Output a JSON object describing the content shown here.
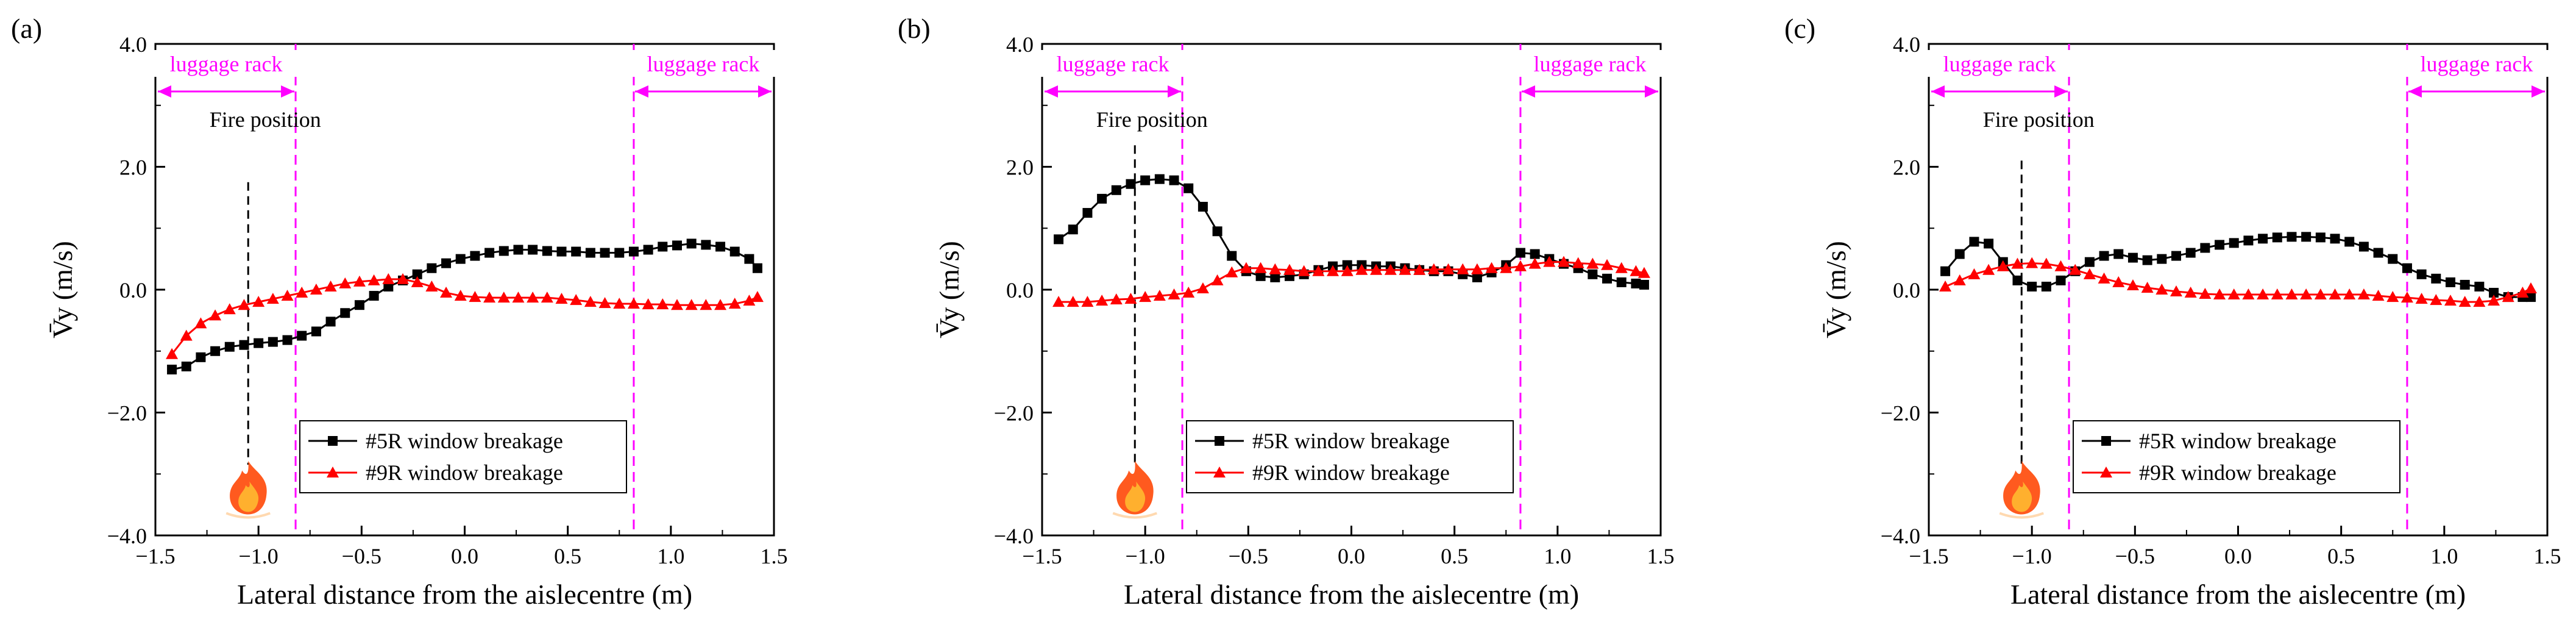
{
  "figure": {
    "panels": [
      {
        "label": "(a)"
      },
      {
        "label": "(b)"
      },
      {
        "label": "(c)"
      }
    ],
    "luggage_rack_label": "luggage rack",
    "fire_position_label": "Fire position",
    "fire_x": -1.05,
    "rack_boundaries": [
      -0.82,
      0.82
    ],
    "colors": {
      "series1": "#000000",
      "series2": "#ff0000",
      "rack": "#ff00ff",
      "fire_outer": "#ff5a1f",
      "fire_inner": "#ffb02e"
    },
    "icon": "fire-icon"
  },
  "chart_data": [
    {
      "type": "line",
      "title": "(a)",
      "xlabel": "Lateral distance from the aislecentre (m)",
      "ylabel": "V̄y (m/s)",
      "xlim": [
        -1.5,
        1.5
      ],
      "ylim": [
        -4.0,
        4.0
      ],
      "xticks": [
        -1.5,
        -1.0,
        -0.5,
        0.0,
        0.5,
        1.0,
        1.5
      ],
      "xtick_labels": [
        "−1.5",
        "−1.0",
        "−0.5",
        "0.0",
        "0.5",
        "1.0",
        "1.5"
      ],
      "yticks": [
        -4.0,
        -2.0,
        0.0,
        2.0,
        4.0
      ],
      "ytick_labels": [
        "−4.0",
        "−2.0",
        "0.0",
        "2.0",
        "4.0"
      ],
      "grid": false,
      "legend": "lower-center",
      "series": [
        {
          "name": "#5R window breakage",
          "marker": "square",
          "x": [
            -1.42,
            -1.35,
            -1.28,
            -1.21,
            -1.14,
            -1.07,
            -1.0,
            -0.93,
            -0.86,
            -0.79,
            -0.72,
            -0.65,
            -0.58,
            -0.51,
            -0.44,
            -0.37,
            -0.3,
            -0.23,
            -0.16,
            -0.09,
            -0.02,
            0.05,
            0.12,
            0.19,
            0.26,
            0.33,
            0.4,
            0.47,
            0.54,
            0.61,
            0.68,
            0.75,
            0.82,
            0.89,
            0.96,
            1.03,
            1.1,
            1.17,
            1.24,
            1.31,
            1.38,
            1.42
          ],
          "y": [
            -1.3,
            -1.25,
            -1.1,
            -1.0,
            -0.93,
            -0.9,
            -0.87,
            -0.85,
            -0.82,
            -0.75,
            -0.68,
            -0.52,
            -0.38,
            -0.25,
            -0.1,
            0.05,
            0.15,
            0.25,
            0.35,
            0.43,
            0.5,
            0.55,
            0.6,
            0.63,
            0.65,
            0.65,
            0.63,
            0.62,
            0.62,
            0.6,
            0.6,
            0.6,
            0.62,
            0.65,
            0.7,
            0.72,
            0.75,
            0.73,
            0.7,
            0.62,
            0.5,
            0.35
          ]
        },
        {
          "name": "#9R window breakage",
          "marker": "triangle",
          "x": [
            -1.42,
            -1.35,
            -1.28,
            -1.21,
            -1.14,
            -1.07,
            -1.0,
            -0.93,
            -0.86,
            -0.79,
            -0.72,
            -0.65,
            -0.58,
            -0.51,
            -0.44,
            -0.37,
            -0.3,
            -0.23,
            -0.16,
            -0.09,
            -0.02,
            0.05,
            0.12,
            0.19,
            0.26,
            0.33,
            0.4,
            0.47,
            0.54,
            0.61,
            0.68,
            0.75,
            0.82,
            0.89,
            0.96,
            1.03,
            1.1,
            1.17,
            1.24,
            1.31,
            1.38,
            1.42
          ],
          "y": [
            -1.05,
            -0.75,
            -0.55,
            -0.42,
            -0.32,
            -0.25,
            -0.2,
            -0.15,
            -0.1,
            -0.05,
            0.0,
            0.05,
            0.1,
            0.13,
            0.15,
            0.17,
            0.17,
            0.12,
            0.05,
            -0.05,
            -0.1,
            -0.12,
            -0.13,
            -0.13,
            -0.13,
            -0.13,
            -0.13,
            -0.15,
            -0.17,
            -0.2,
            -0.22,
            -0.23,
            -0.23,
            -0.24,
            -0.24,
            -0.25,
            -0.25,
            -0.25,
            -0.25,
            -0.23,
            -0.18,
            -0.12
          ]
        }
      ]
    },
    {
      "type": "line",
      "title": "(b)",
      "xlabel": "Lateral distance from the aislecentre (m)",
      "ylabel": "V̄y (m/s)",
      "xlim": [
        -1.5,
        1.5
      ],
      "ylim": [
        -4.0,
        4.0
      ],
      "xticks": [
        -1.5,
        -1.0,
        -0.5,
        0.0,
        0.5,
        1.0,
        1.5
      ],
      "xtick_labels": [
        "−1.5",
        "−1.0",
        "−0.5",
        "0.0",
        "0.5",
        "1.0",
        "1.5"
      ],
      "yticks": [
        -4.0,
        -2.0,
        0.0,
        2.0,
        4.0
      ],
      "ytick_labels": [
        "−4.0",
        "−2.0",
        "0.0",
        "2.0",
        "4.0"
      ],
      "grid": false,
      "legend": "lower-center",
      "series": [
        {
          "name": "#5R window breakage",
          "marker": "square",
          "x": [
            -1.42,
            -1.35,
            -1.28,
            -1.21,
            -1.14,
            -1.07,
            -1.0,
            -0.93,
            -0.86,
            -0.79,
            -0.72,
            -0.65,
            -0.58,
            -0.51,
            -0.44,
            -0.37,
            -0.3,
            -0.23,
            -0.16,
            -0.09,
            -0.02,
            0.05,
            0.12,
            0.19,
            0.26,
            0.33,
            0.4,
            0.47,
            0.54,
            0.61,
            0.68,
            0.75,
            0.82,
            0.89,
            0.96,
            1.03,
            1.1,
            1.17,
            1.24,
            1.31,
            1.38,
            1.42
          ],
          "y": [
            0.82,
            0.98,
            1.25,
            1.48,
            1.62,
            1.72,
            1.78,
            1.8,
            1.78,
            1.65,
            1.35,
            0.95,
            0.55,
            0.3,
            0.22,
            0.2,
            0.22,
            0.25,
            0.32,
            0.38,
            0.4,
            0.4,
            0.38,
            0.38,
            0.35,
            0.32,
            0.3,
            0.3,
            0.25,
            0.2,
            0.28,
            0.4,
            0.6,
            0.58,
            0.5,
            0.42,
            0.35,
            0.25,
            0.18,
            0.12,
            0.1,
            0.08
          ]
        },
        {
          "name": "#9R window breakage",
          "marker": "triangle",
          "x": [
            -1.42,
            -1.35,
            -1.28,
            -1.21,
            -1.14,
            -1.07,
            -1.0,
            -0.93,
            -0.86,
            -0.79,
            -0.72,
            -0.65,
            -0.58,
            -0.51,
            -0.44,
            -0.37,
            -0.3,
            -0.23,
            -0.16,
            -0.09,
            -0.02,
            0.05,
            0.12,
            0.19,
            0.26,
            0.33,
            0.4,
            0.47,
            0.54,
            0.61,
            0.68,
            0.75,
            0.82,
            0.89,
            0.96,
            1.03,
            1.1,
            1.17,
            1.24,
            1.31,
            1.38,
            1.42
          ],
          "y": [
            -0.2,
            -0.2,
            -0.2,
            -0.18,
            -0.16,
            -0.15,
            -0.12,
            -0.1,
            -0.08,
            -0.05,
            0.02,
            0.15,
            0.28,
            0.35,
            0.35,
            0.33,
            0.32,
            0.3,
            0.3,
            0.3,
            0.3,
            0.32,
            0.32,
            0.32,
            0.32,
            0.32,
            0.33,
            0.33,
            0.33,
            0.33,
            0.35,
            0.35,
            0.38,
            0.42,
            0.45,
            0.45,
            0.43,
            0.42,
            0.4,
            0.35,
            0.3,
            0.27
          ]
        }
      ]
    },
    {
      "type": "line",
      "title": "(c)",
      "xlabel": "Lateral distance from the aislecentre (m)",
      "ylabel": "V̄y (m/s)",
      "xlim": [
        -1.5,
        1.5
      ],
      "ylim": [
        -4.0,
        4.0
      ],
      "xticks": [
        -1.5,
        -1.0,
        -0.5,
        0.0,
        0.5,
        1.0,
        1.5
      ],
      "xtick_labels": [
        "−1.5",
        "−1.0",
        "−0.5",
        "0.0",
        "0.5",
        "1.0",
        "1.5"
      ],
      "yticks": [
        -4.0,
        -2.0,
        0.0,
        2.0,
        4.0
      ],
      "ytick_labels": [
        "−4.0",
        "−2.0",
        "0.0",
        "2.0",
        "4.0"
      ],
      "grid": false,
      "legend": "lower-center",
      "series": [
        {
          "name": "#5R window breakage",
          "marker": "square",
          "x": [
            -1.42,
            -1.35,
            -1.28,
            -1.21,
            -1.14,
            -1.07,
            -1.0,
            -0.93,
            -0.86,
            -0.79,
            -0.72,
            -0.65,
            -0.58,
            -0.51,
            -0.44,
            -0.37,
            -0.3,
            -0.23,
            -0.16,
            -0.09,
            -0.02,
            0.05,
            0.12,
            0.19,
            0.26,
            0.33,
            0.4,
            0.47,
            0.54,
            0.61,
            0.68,
            0.75,
            0.82,
            0.89,
            0.96,
            1.03,
            1.1,
            1.17,
            1.24,
            1.31,
            1.38,
            1.42
          ],
          "y": [
            0.3,
            0.58,
            0.78,
            0.75,
            0.45,
            0.15,
            0.05,
            0.05,
            0.15,
            0.3,
            0.45,
            0.55,
            0.58,
            0.52,
            0.48,
            0.5,
            0.55,
            0.6,
            0.68,
            0.73,
            0.76,
            0.8,
            0.83,
            0.85,
            0.86,
            0.86,
            0.85,
            0.83,
            0.78,
            0.7,
            0.6,
            0.5,
            0.35,
            0.25,
            0.18,
            0.12,
            0.08,
            0.05,
            -0.05,
            -0.12,
            -0.12,
            -0.12
          ]
        },
        {
          "name": "#9R window breakage",
          "marker": "triangle",
          "x": [
            -1.42,
            -1.35,
            -1.28,
            -1.21,
            -1.14,
            -1.07,
            -1.0,
            -0.93,
            -0.86,
            -0.79,
            -0.72,
            -0.65,
            -0.58,
            -0.51,
            -0.44,
            -0.37,
            -0.3,
            -0.23,
            -0.16,
            -0.09,
            -0.02,
            0.05,
            0.12,
            0.19,
            0.26,
            0.33,
            0.4,
            0.47,
            0.54,
            0.61,
            0.68,
            0.75,
            0.82,
            0.89,
            0.96,
            1.03,
            1.1,
            1.17,
            1.24,
            1.31,
            1.38,
            1.42
          ],
          "y": [
            0.05,
            0.15,
            0.25,
            0.32,
            0.38,
            0.42,
            0.43,
            0.42,
            0.38,
            0.32,
            0.25,
            0.18,
            0.12,
            0.07,
            0.03,
            0.0,
            -0.03,
            -0.05,
            -0.07,
            -0.08,
            -0.08,
            -0.08,
            -0.08,
            -0.08,
            -0.08,
            -0.08,
            -0.08,
            -0.08,
            -0.08,
            -0.08,
            -0.1,
            -0.12,
            -0.13,
            -0.15,
            -0.17,
            -0.18,
            -0.2,
            -0.2,
            -0.18,
            -0.12,
            -0.05,
            0.02
          ]
        }
      ]
    }
  ]
}
